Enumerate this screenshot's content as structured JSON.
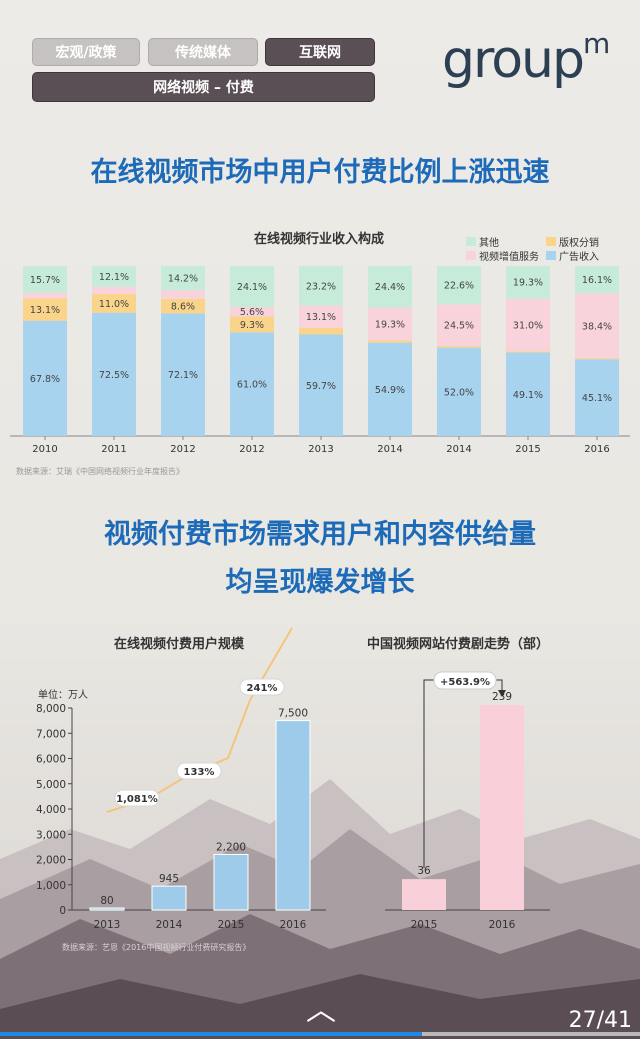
{
  "nav": {
    "tabs": [
      {
        "label": "宏观/政策",
        "active": false
      },
      {
        "label": "传统媒体",
        "active": false
      },
      {
        "label": "互联网",
        "active": true
      }
    ],
    "subtab": "网络视频 – 付费"
  },
  "logo": {
    "text": "group",
    "sup": "m"
  },
  "headline1": "在线视频市场中用户付费比例上涨迅速",
  "headline2a": "视频付费市场需求用户和内容供给量",
  "headline2b": "均呈现爆发增长",
  "colors": {
    "ad": "#a8d3ef",
    "royalty": "#f9d48a",
    "vas": "#f9d3dc",
    "other": "#c6ecd9",
    "bar_blue": "#9fcbea",
    "bar_pink": "#f9cfd9",
    "growth_line": "#f5c47c",
    "headline": "#1d6bb8"
  },
  "chart_data": [
    {
      "type": "bar",
      "stacked": true,
      "percent": true,
      "title": "在线视频行业收入构成",
      "categories": [
        "2010",
        "2011",
        "2012",
        "2012",
        "2013",
        "2014",
        "2014",
        "2015",
        "2016"
      ],
      "series": [
        {
          "name": "广告收入",
          "values": [
            67.8,
            72.5,
            72.1,
            61.0,
            59.7,
            54.9,
            52.0,
            49.1,
            45.1
          ],
          "labels": [
            "67.8%",
            "72.5%",
            "72.1%",
            "61.0%",
            "59.7%",
            "54.9%",
            "52.0%",
            "49.1%",
            "45.1%"
          ]
        },
        {
          "name": "版权分销",
          "values": [
            13.1,
            11.0,
            8.6,
            9.3,
            3.9,
            1.4,
            0.9,
            0.7,
            0.5
          ],
          "labels": [
            "13.1%",
            "11.0%",
            "8.6%",
            "9.3%",
            "3.9%",
            "1.4%",
            "0.9%",
            "0.7%",
            "0.5%"
          ]
        },
        {
          "name": "视频增值服务",
          "values": [
            3.4,
            4.3,
            5.1,
            5.6,
            13.1,
            19.3,
            24.5,
            31.0,
            38.4
          ],
          "labels": [
            "3.4%",
            "4.3%",
            "5.1%",
            "5.6%",
            "13.1%",
            "19.3%",
            "24.5%",
            "31.0%",
            "38.4%"
          ]
        },
        {
          "name": "其他",
          "values": [
            15.7,
            12.1,
            14.2,
            24.1,
            23.2,
            24.4,
            22.6,
            19.3,
            16.1
          ],
          "labels": [
            "15.7%",
            "12.1%",
            "14.2%",
            "24.1%",
            "23.2%",
            "24.4%",
            "22.6%",
            "19.3%",
            "16.1%"
          ]
        }
      ],
      "legend": [
        "其他",
        "版权分销",
        "视频增值服务",
        "广告收入"
      ],
      "legend_position": "top-right",
      "source": "数据来源：艾瑞《中国网络视频行业年度报告》"
    },
    {
      "type": "bar",
      "title": "在线视频付费用户规模",
      "ylabel": "单位：万人",
      "categories": [
        "2013",
        "2014",
        "2015",
        "2016"
      ],
      "values": [
        80,
        945,
        2200,
        7500
      ],
      "value_labels": [
        "80",
        "945",
        "2,200",
        "7,500"
      ],
      "ylim": [
        0,
        8000
      ],
      "yticks": [
        "0",
        "1,000",
        "2,000",
        "3,000",
        "4,000",
        "5,000",
        "6,000",
        "7,000",
        "8,000"
      ],
      "growth_labels": [
        "1,081%",
        "133%",
        "241%"
      ],
      "source": "数据来源：艺恩《2016中国视频行业付费研究报告》"
    },
    {
      "type": "bar",
      "title": "中国视频网站付费剧走势（部）",
      "categories": [
        "2015",
        "2016"
      ],
      "values": [
        36,
        239
      ],
      "value_labels": [
        "36",
        "239"
      ],
      "growth_label": "+563.9%"
    }
  ],
  "pager": "27/41",
  "progress": 0.66
}
